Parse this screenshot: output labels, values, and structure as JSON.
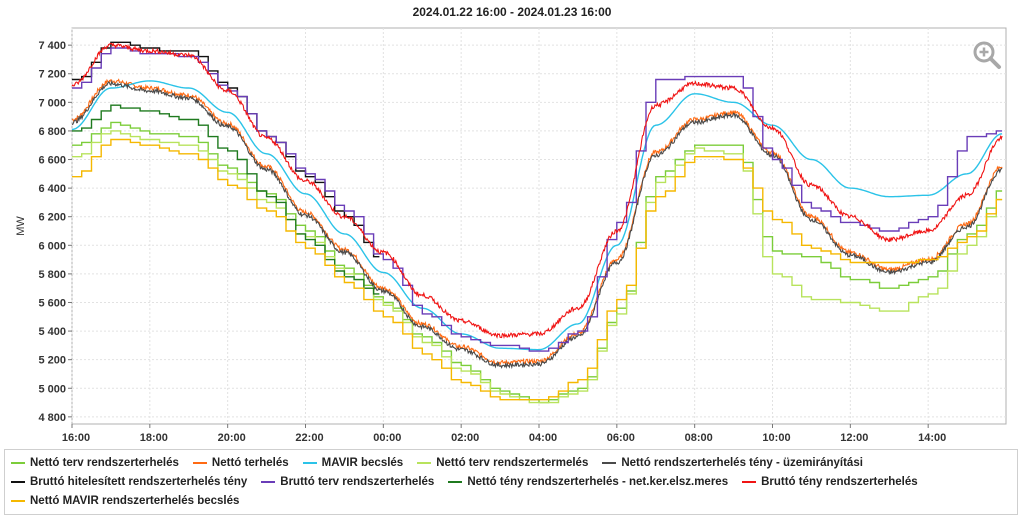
{
  "chart_data": {
    "type": "line",
    "title": "2024.01.22 16:00 - 2024.01.23 16:00",
    "xlabel": "",
    "ylabel": "MW",
    "xlim": [
      16,
      40
    ],
    "ylim": [
      4750,
      7520
    ],
    "yticks": [
      4800,
      5000,
      5200,
      5400,
      5600,
      5800,
      6000,
      6200,
      6400,
      6600,
      6800,
      7000,
      7200,
      7400
    ],
    "ytick_labels": [
      "4 800",
      "5 000",
      "5 200",
      "5 400",
      "5 600",
      "5 800",
      "6 000",
      "6 200",
      "6 400",
      "6 600",
      "6 800",
      "7 000",
      "7 200",
      "7 400"
    ],
    "xticks": [
      16,
      18,
      20,
      22,
      24,
      26,
      28,
      30,
      32,
      34,
      36,
      38
    ],
    "xtick_labels": [
      "16:00",
      "18:00",
      "20:00",
      "22:00",
      "00:00",
      "02:00",
      "04:00",
      "06:00",
      "08:00",
      "10:00",
      "12:00",
      "14:00"
    ],
    "grid": true,
    "legend_position": "bottom",
    "series": [
      {
        "name": "Nettó terv rendszerterhelés",
        "color": "#7ccd3a",
        "style": "step",
        "x": [
          16,
          17,
          18,
          19,
          20,
          21,
          22,
          23,
          24,
          25,
          26,
          27,
          28,
          29,
          30,
          31,
          32,
          33,
          34,
          35,
          36,
          37,
          38,
          39,
          39.9
        ],
        "y": [
          6700,
          6850,
          6780,
          6760,
          6530,
          6350,
          6100,
          5830,
          5600,
          5350,
          5150,
          4980,
          4900,
          5000,
          5550,
          6480,
          6700,
          6690,
          5950,
          5910,
          5760,
          5700,
          5780,
          6080,
          6400
        ]
      },
      {
        "name": "Nettó terhelés",
        "color": "#ff6a13",
        "style": "noisy",
        "x": [
          16,
          17,
          18,
          19,
          20,
          21,
          22,
          23,
          24,
          25,
          26,
          27,
          28,
          29,
          30,
          31,
          32,
          33,
          34,
          35,
          36,
          37,
          38,
          39,
          39.9
        ],
        "y": [
          6880,
          7150,
          7100,
          7050,
          6850,
          6550,
          6230,
          5970,
          5700,
          5450,
          5290,
          5180,
          5190,
          5380,
          5900,
          6650,
          6880,
          6930,
          6650,
          6200,
          5950,
          5830,
          5900,
          6150,
          6550
        ]
      },
      {
        "name": "MAVIR becslés",
        "color": "#2bc3e8",
        "style": "smooth",
        "x": [
          16,
          17,
          18,
          19,
          20,
          21,
          22,
          23,
          24,
          25,
          26,
          27,
          28,
          29,
          30,
          31,
          32,
          33,
          34,
          35,
          36,
          37,
          38,
          39,
          39.9
        ],
        "y": [
          6810,
          7100,
          7150,
          7100,
          6930,
          6640,
          6360,
          6080,
          5810,
          5560,
          5380,
          5280,
          5270,
          5450,
          6000,
          6840,
          7060,
          7000,
          6840,
          6600,
          6400,
          6340,
          6350,
          6500,
          6780
        ]
      },
      {
        "name": "Nettó terv rendszertermelés",
        "color": "#b8e35c",
        "style": "step",
        "x": [
          16,
          17,
          18,
          19,
          20,
          21,
          22,
          23,
          24,
          25,
          26,
          27,
          28,
          29,
          30,
          31,
          32,
          33,
          34,
          35,
          36,
          37,
          38,
          39,
          39.9
        ],
        "y": [
          6620,
          6800,
          6730,
          6700,
          6490,
          6290,
          6050,
          5800,
          5580,
          5320,
          5120,
          4950,
          4890,
          4980,
          5520,
          6440,
          6670,
          6640,
          5800,
          5620,
          5600,
          5530,
          5650,
          6000,
          6350
        ]
      },
      {
        "name": "Nettó rendszerterhelés tény - üzemirányítási",
        "color": "#4a4a4a",
        "style": "noisy",
        "x": [
          16,
          17,
          18,
          19,
          20,
          21,
          22,
          23,
          24,
          25,
          26,
          27,
          28,
          29,
          30,
          31,
          32,
          33,
          34,
          35,
          36,
          37,
          38,
          39,
          39.9
        ],
        "y": [
          6860,
          7130,
          7080,
          7030,
          6830,
          6530,
          6210,
          5950,
          5680,
          5430,
          5270,
          5160,
          5170,
          5360,
          5880,
          6630,
          6860,
          6910,
          6630,
          6180,
          5930,
          5810,
          5880,
          6130,
          6530
        ]
      },
      {
        "name": "Bruttó hitelesített rendszerterhelés tény",
        "color": "#111111",
        "style": "step",
        "x": [
          16,
          17,
          18,
          19,
          20,
          21,
          22,
          23,
          23.9
        ],
        "y": [
          7150,
          7420,
          7370,
          7350,
          7100,
          6750,
          6480,
          6200,
          5900
        ]
      },
      {
        "name": "Bruttó terv rendszerterhelés",
        "color": "#6a3db8",
        "style": "step",
        "x": [
          16,
          17,
          18,
          19,
          20,
          21,
          22,
          23,
          24,
          25,
          26,
          27,
          28,
          29,
          30,
          31,
          32,
          33,
          34,
          35,
          36,
          37,
          38,
          39,
          39.9
        ],
        "y": [
          7100,
          7380,
          7340,
          7320,
          7080,
          6760,
          6500,
          6240,
          5900,
          5520,
          5350,
          5300,
          5250,
          5400,
          6150,
          7150,
          7180,
          7180,
          6600,
          6250,
          6150,
          6100,
          6200,
          6750,
          6800
        ]
      },
      {
        "name": "Nettó tény rendszerterhelés - net.ker.elsz.meres",
        "color": "#1f7a1f",
        "style": "step",
        "x": [
          16,
          17,
          18,
          19,
          20,
          21,
          22,
          23,
          23.9
        ],
        "y": [
          6800,
          6970,
          6930,
          6880,
          6650,
          6340,
          6030,
          5780,
          5660
        ]
      },
      {
        "name": "Bruttó tény rendszerterhelés",
        "color": "#f01414",
        "style": "noisy",
        "x": [
          16,
          17,
          18,
          19,
          20,
          21,
          22,
          23,
          24,
          25,
          26,
          27,
          28,
          29,
          30,
          31,
          32,
          33,
          34,
          35,
          36,
          37,
          38,
          39,
          39.9
        ],
        "y": [
          7120,
          7400,
          7360,
          7330,
          7080,
          6750,
          6450,
          6200,
          5950,
          5650,
          5470,
          5370,
          5380,
          5560,
          6100,
          6980,
          7130,
          7100,
          6820,
          6420,
          6200,
          6040,
          6100,
          6350,
          6750
        ]
      },
      {
        "name": "Nettó MAVIR rendszerterhelés becslés",
        "color": "#f5b800",
        "style": "step",
        "x": [
          16,
          17,
          18,
          19,
          20,
          21,
          22,
          23,
          24,
          25,
          26,
          27,
          28,
          29,
          30,
          31,
          32,
          33,
          34,
          35,
          36,
          37,
          38,
          39,
          39.9
        ],
        "y": [
          6480,
          6740,
          6690,
          6640,
          6420,
          6230,
          5980,
          5740,
          5500,
          5240,
          5030,
          4920,
          4910,
          5060,
          5620,
          6340,
          6620,
          6600,
          6180,
          5980,
          5880,
          5870,
          5900,
          6050,
          6330
        ]
      }
    ]
  }
}
